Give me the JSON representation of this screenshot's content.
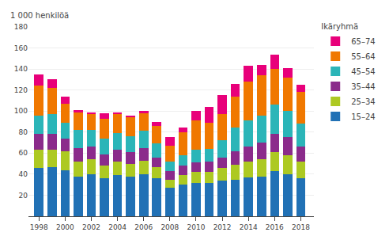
{
  "chart_data": {
    "type": "bar",
    "stacked": true,
    "ylabel": "1 000 henkilöä",
    "legend_title": "Ikäryhmä",
    "legend": "right",
    "grid": true,
    "x": [
      1998,
      1999,
      2000,
      2001,
      2002,
      2003,
      2004,
      2005,
      2006,
      2007,
      2008,
      2009,
      2010,
      2011,
      2012,
      2013,
      2014,
      2015,
      2016,
      2017,
      2018
    ],
    "xlim": [
      1997.2,
      2019.0
    ],
    "xticks": [
      1998,
      2000,
      2002,
      2004,
      2006,
      2008,
      2010,
      2012,
      2014,
      2016,
      2018
    ],
    "ylim": [
      0,
      180
    ],
    "yticks": [
      {
        "value": 0,
        "label": null
      },
      20,
      40,
      60,
      80,
      100,
      120,
      140,
      160,
      180
    ],
    "series": [
      {
        "name": "15–24",
        "color": "#2171b5",
        "values": [
          46,
          47,
          44,
          38,
          40,
          36,
          39,
          38,
          40,
          36,
          27,
          30,
          32,
          32,
          34,
          35,
          37,
          38,
          43,
          40,
          36
        ]
      },
      {
        "name": "25–34",
        "color": "#adc922",
        "values": [
          17,
          16,
          18,
          14,
          14,
          12,
          13,
          12,
          13,
          11,
          8,
          9,
          10,
          10,
          12,
          14,
          15,
          16,
          18,
          18,
          16
        ]
      },
      {
        "name": "35–44",
        "color": "#8b2b8b",
        "values": [
          15,
          15,
          12,
          13,
          12,
          11,
          11,
          11,
          12,
          9,
          8,
          9,
          9,
          10,
          10,
          13,
          14,
          16,
          17,
          17,
          14
        ]
      },
      {
        "name": "45–54",
        "color": "#2bb5b8",
        "values": [
          18,
          19,
          15,
          17,
          16,
          15,
          16,
          15,
          16,
          13,
          9,
          10,
          12,
          12,
          16,
          22,
          25,
          26,
          28,
          25,
          22
        ]
      },
      {
        "name": "55–64",
        "color": "#f07800",
        "values": [
          28,
          25,
          18,
          17,
          15,
          19,
          18,
          18,
          17,
          17,
          15,
          22,
          28,
          25,
          25,
          30,
          37,
          38,
          34,
          32,
          30
        ]
      },
      {
        "name": "65–74",
        "color": "#e8007a",
        "values": [
          11,
          8,
          7,
          2,
          2,
          5,
          2,
          2,
          2,
          4,
          8,
          4,
          9,
          15,
          18,
          12,
          15,
          10,
          14,
          9,
          7
        ]
      }
    ]
  }
}
